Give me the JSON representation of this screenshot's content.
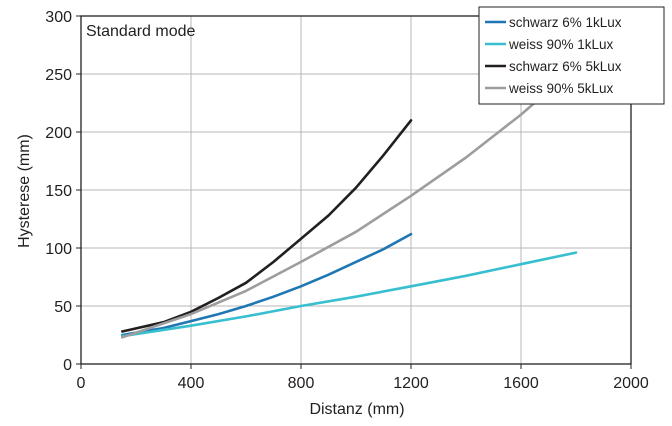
{
  "chart_data": {
    "type": "line",
    "annotation": "Standard mode",
    "xlabel": "Distanz (mm)",
    "ylabel": "Hysterese (mm)",
    "xlim": [
      0,
      2000
    ],
    "ylim": [
      0,
      300
    ],
    "x_ticks": [
      0,
      400,
      800,
      1200,
      1600,
      2000
    ],
    "y_ticks": [
      0,
      50,
      100,
      150,
      200,
      250,
      300
    ],
    "grid": true,
    "legend_position": "top-right",
    "series": [
      {
        "name": "schwarz 6% 1kLux",
        "color": "#1f77b4",
        "x": [
          150,
          300,
          400,
          500,
          600,
          700,
          800,
          900,
          1000,
          1100,
          1200
        ],
        "y": [
          25,
          31,
          37,
          43,
          50,
          58,
          67,
          77,
          88,
          99,
          112
        ]
      },
      {
        "name": "weiss 90% 1kLux",
        "color": "#37bfd0",
        "x": [
          150,
          400,
          600,
          800,
          1000,
          1200,
          1400,
          1600,
          1800
        ],
        "y": [
          24,
          33,
          41,
          50,
          58,
          67,
          76,
          86,
          96
        ]
      },
      {
        "name": "schwarz 6% 5kLux",
        "color": "#231f20",
        "x": [
          150,
          300,
          400,
          500,
          600,
          700,
          800,
          900,
          1000,
          1100,
          1200
        ],
        "y": [
          28,
          36,
          45,
          57,
          70,
          88,
          108,
          128,
          152,
          180,
          210
        ]
      },
      {
        "name": "weiss 90% 5kLux",
        "color": "#9d9d9d",
        "x": [
          150,
          400,
          600,
          800,
          1000,
          1200,
          1400,
          1600,
          1770
        ],
        "y": [
          23,
          43,
          63,
          88,
          114,
          145,
          178,
          215,
          250
        ]
      }
    ]
  }
}
